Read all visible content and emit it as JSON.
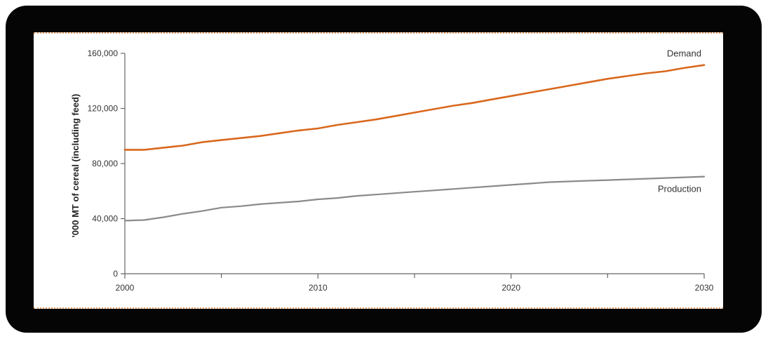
{
  "chart_data": {
    "type": "line",
    "title": "",
    "xlabel": "",
    "ylabel": "'000 MT of cereal (including feed)",
    "xlim": [
      2000,
      2030
    ],
    "ylim": [
      0,
      160000
    ],
    "x_ticks": [
      2000,
      2010,
      2020,
      2030
    ],
    "x_minor_ticks": [
      2005,
      2015,
      2025
    ],
    "x_tick_labels": [
      "2000",
      "2010",
      "2020",
      "2030"
    ],
    "y_ticks": [
      0,
      40000,
      80000,
      120000,
      160000
    ],
    "y_tick_labels": [
      "0",
      "40,000",
      "80,000",
      "120,000",
      "160,000"
    ],
    "grid": false,
    "series": [
      {
        "name": "Demand",
        "color": "#d9681e",
        "x": [
          2000,
          2001,
          2002,
          2003,
          2004,
          2005,
          2006,
          2007,
          2008,
          2009,
          2010,
          2011,
          2012,
          2013,
          2014,
          2015,
          2016,
          2017,
          2018,
          2019,
          2020,
          2021,
          2022,
          2023,
          2024,
          2025,
          2026,
          2027,
          2028,
          2029,
          2030
        ],
        "values": [
          90000,
          90000,
          91500,
          93000,
          95500,
          97000,
          98500,
          100000,
          102000,
          104000,
          105500,
          108000,
          110000,
          112000,
          114500,
          117000,
          119500,
          122000,
          124000,
          126500,
          129000,
          131500,
          134000,
          136500,
          139000,
          141500,
          143500,
          145500,
          147000,
          149500,
          151500
        ]
      },
      {
        "name": "Production",
        "color": "#8a8a8a",
        "x": [
          2000,
          2001,
          2002,
          2003,
          2004,
          2005,
          2006,
          2007,
          2008,
          2009,
          2010,
          2011,
          2012,
          2013,
          2014,
          2015,
          2016,
          2017,
          2018,
          2019,
          2020,
          2021,
          2022,
          2023,
          2024,
          2025,
          2026,
          2027,
          2028,
          2029,
          2030
        ],
        "values": [
          38500,
          39000,
          41000,
          43500,
          45500,
          48000,
          49000,
          50500,
          51500,
          52500,
          54000,
          55000,
          56500,
          57500,
          58500,
          59500,
          60500,
          61500,
          62500,
          63500,
          64500,
          65500,
          66500,
          67000,
          67500,
          68000,
          68500,
          69000,
          69500,
          70000,
          70500
        ]
      }
    ]
  }
}
